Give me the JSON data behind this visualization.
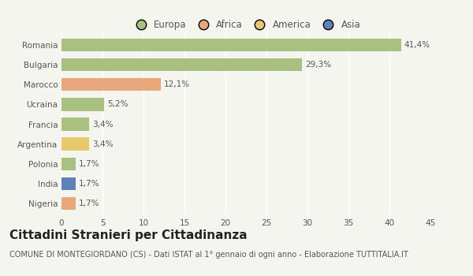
{
  "categories": [
    "Romania",
    "Bulgaria",
    "Marocco",
    "Ucraina",
    "Francia",
    "Argentina",
    "Polonia",
    "India",
    "Nigeria"
  ],
  "values": [
    41.4,
    29.3,
    12.1,
    5.2,
    3.4,
    3.4,
    1.7,
    1.7,
    1.7
  ],
  "labels": [
    "41,4%",
    "29,3%",
    "12,1%",
    "5,2%",
    "3,4%",
    "3,4%",
    "1,7%",
    "1,7%",
    "1,7%"
  ],
  "colors": [
    "#a8c080",
    "#a8c080",
    "#e8a87c",
    "#a8c080",
    "#a8c080",
    "#e8c86c",
    "#a8c080",
    "#6080b8",
    "#e8a87c"
  ],
  "legend_labels": [
    "Europa",
    "Africa",
    "America",
    "Asia"
  ],
  "legend_colors": [
    "#a8c080",
    "#e8a87c",
    "#e8c86c",
    "#6080b8"
  ],
  "xlim": [
    0,
    45
  ],
  "xticks": [
    0,
    5,
    10,
    15,
    20,
    25,
    30,
    35,
    40,
    45
  ],
  "title": "Cittadini Stranieri per Cittadinanza",
  "subtitle": "COMUNE DI MONTEGIORDANO (CS) - Dati ISTAT al 1° gennaio di ogni anno - Elaborazione TUTTITALIA.IT",
  "background_color": "#f5f5f0",
  "bar_height": 0.65,
  "grid_color": "#ffffff",
  "title_fontsize": 11,
  "subtitle_fontsize": 7,
  "label_fontsize": 7.5,
  "tick_fontsize": 7.5,
  "legend_fontsize": 8.5
}
